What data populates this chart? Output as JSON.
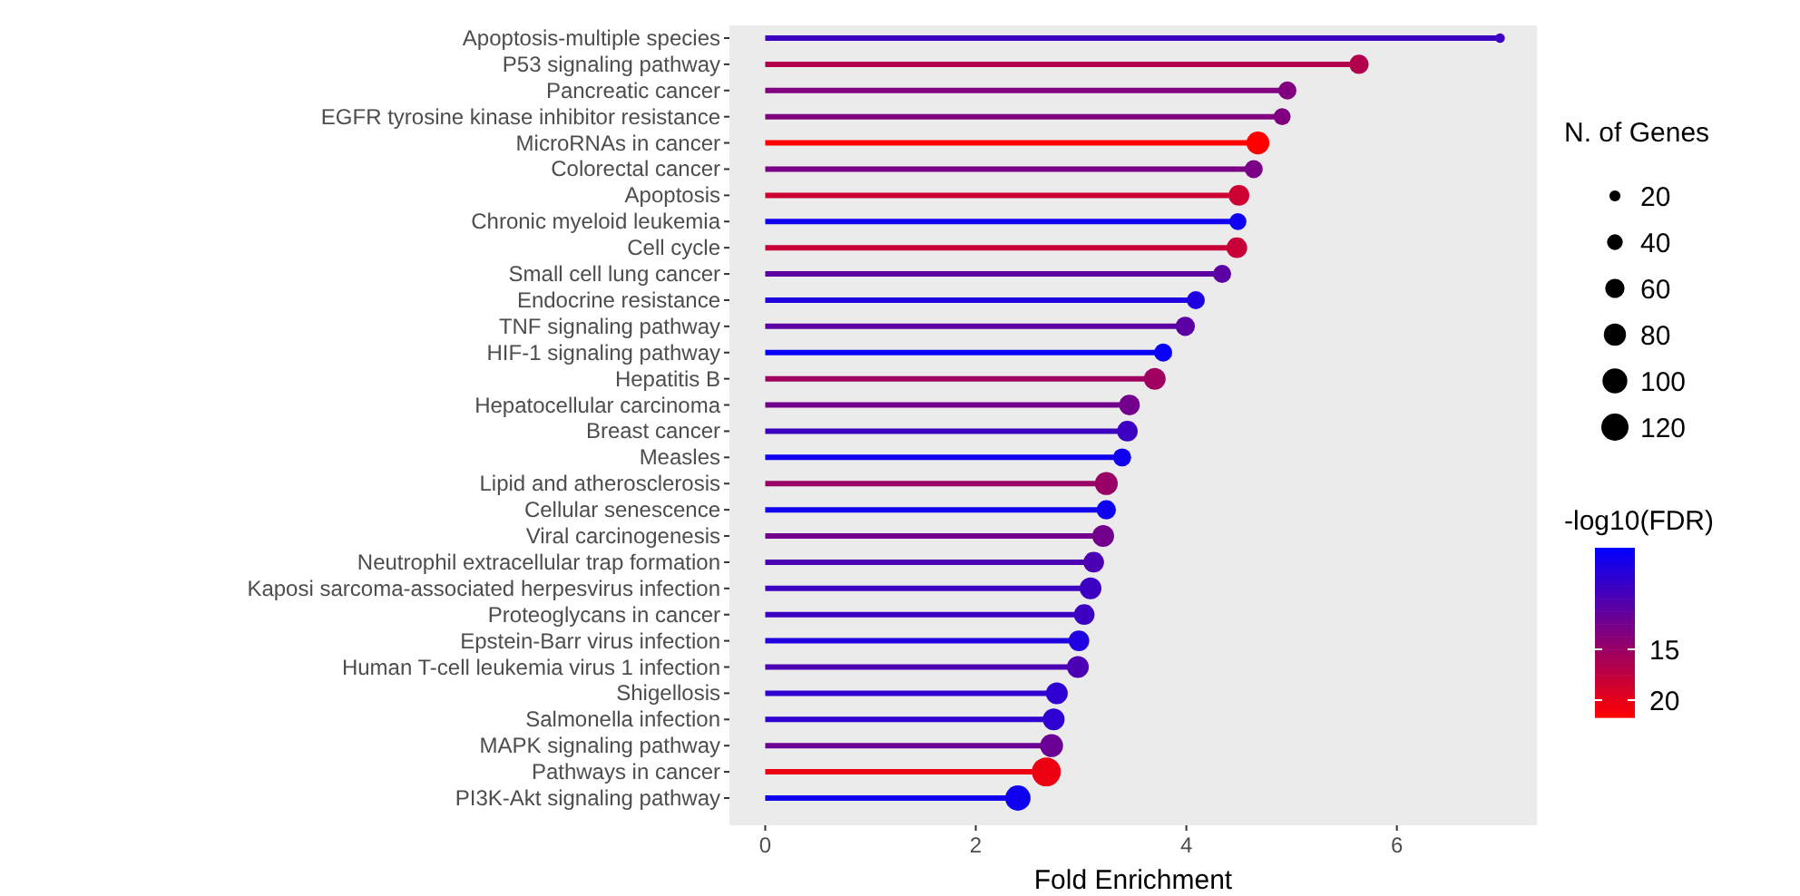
{
  "chart_data": {
    "type": "lollipop",
    "orientation": "horizontal",
    "xlabel": "Fold Enrichment",
    "legend_title": "N. of Genes",
    "clabel": "-log10(FDR)",
    "categories": [
      "Apoptosis-multiple species",
      "P53 signaling pathway",
      "Pancreatic cancer",
      "EGFR tyrosine kinase inhibitor resistance",
      "MicroRNAs in cancer",
      "Colorectal cancer",
      "Apoptosis",
      "Chronic myeloid leukemia",
      "Cell cycle",
      "Small cell lung cancer",
      "Endocrine resistance",
      "TNF signaling pathway",
      "HIF-1 signaling pathway",
      "Hepatitis B",
      "Hepatocellular carcinoma",
      "Breast cancer",
      "Measles",
      "Lipid and atherosclerosis",
      "Cellular senescence",
      "Viral carcinogenesis",
      "Neutrophil extracellular trap formation",
      "Kaposi sarcoma-associated herpesvirus infection",
      "Proteoglycans in cancer",
      "Epstein-Barr virus infection",
      "Human T-cell leukemia virus 1 infection",
      "Shigellosis",
      "Salmonella infection",
      "MAPK signaling pathway",
      "Pathways in cancer",
      "PI3K-Akt signaling pathway"
    ],
    "values": [
      6.98,
      5.64,
      4.96,
      4.91,
      4.68,
      4.64,
      4.5,
      4.49,
      4.48,
      4.34,
      4.09,
      3.99,
      3.78,
      3.7,
      3.46,
      3.44,
      3.39,
      3.24,
      3.24,
      3.21,
      3.12,
      3.09,
      3.03,
      2.98,
      2.97,
      2.77,
      2.74,
      2.72,
      2.67,
      2.4
    ],
    "sizes": [
      15,
      60,
      53,
      47,
      85,
      53,
      69,
      47,
      69,
      53,
      53,
      60,
      53,
      77,
      69,
      69,
      53,
      85,
      60,
      77,
      69,
      77,
      69,
      69,
      77,
      77,
      77,
      85,
      136,
      104
    ],
    "size_legend": [
      20,
      40,
      60,
      80,
      100,
      120
    ],
    "cvalues": [
      9,
      16.7,
      13.4,
      13.4,
      21.7,
      13,
      18.4,
      6,
      18,
      11,
      7,
      11,
      5.5,
      15.5,
      12.5,
      9,
      6,
      15,
      6,
      12.5,
      10,
      9,
      9,
      7,
      10,
      8,
      8,
      12,
      20.5,
      6
    ],
    "clim": [
      5,
      21.7
    ],
    "cticks": [
      15,
      20
    ],
    "xlim": [
      -0.34,
      7.33
    ],
    "xticks": [
      0,
      2,
      4,
      6
    ],
    "grid": false
  }
}
